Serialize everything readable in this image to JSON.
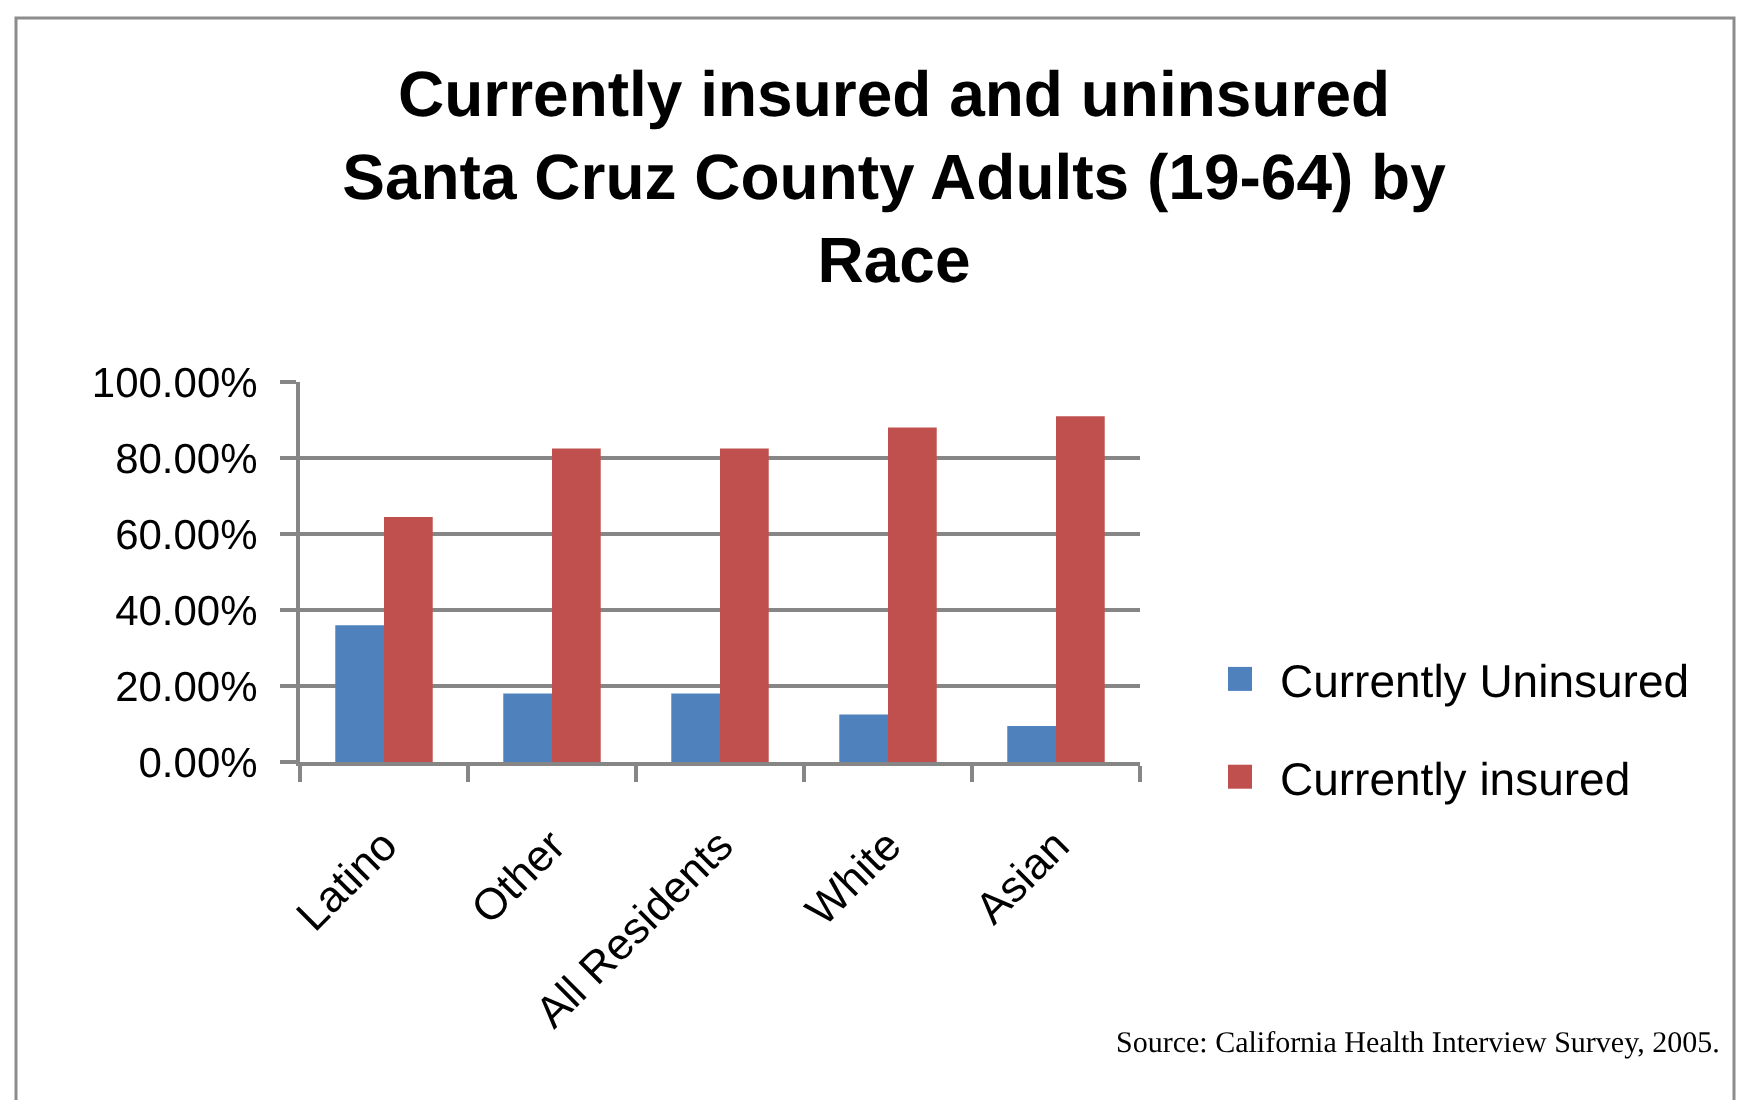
{
  "chart_data": {
    "type": "bar",
    "title": "Currently insured and uninsured Santa Cruz County Adults (19-64) by Race",
    "categories": [
      "Latino",
      "Other",
      "All Residents",
      "White",
      "Asian"
    ],
    "series": [
      {
        "name": "Currently Uninsured",
        "color": "#4f81bd",
        "values": [
          36,
          18,
          18,
          12.5,
          9.5
        ]
      },
      {
        "name": "Currently insured",
        "color": "#c0504d",
        "values": [
          64.5,
          82.5,
          82.5,
          88,
          91
        ]
      }
    ],
    "ylim": [
      0,
      100
    ],
    "yticks": [
      {
        "value": 0,
        "label": "0.00%"
      },
      {
        "value": 20,
        "label": "20.00%"
      },
      {
        "value": 40,
        "label": "40.00%"
      },
      {
        "value": 60,
        "label": "60.00%"
      },
      {
        "value": 80,
        "label": "80.00%"
      },
      {
        "value": 100,
        "label": "100.00%"
      }
    ],
    "grid": "y",
    "legend": "right",
    "annotations": [
      "Source: California Health Interview Survey, 2005."
    ]
  }
}
